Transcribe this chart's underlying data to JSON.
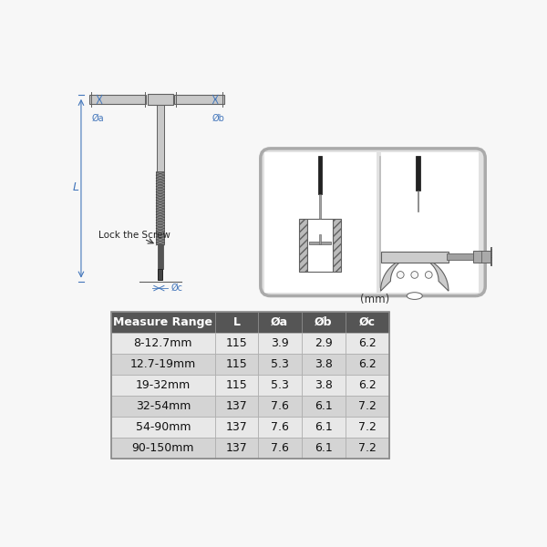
{
  "bg_color": "#f7f7f7",
  "table_header_bg": "#555555",
  "table_header_color": "#ffffff",
  "table_row_odd_bg": "#d4d4d4",
  "table_row_even_bg": "#e8e8e8",
  "table_headers": [
    "Measure Range",
    "L",
    "Øa",
    "Øb",
    "Øc"
  ],
  "table_rows": [
    [
      "8-12.7mm",
      "115",
      "3.9",
      "2.9",
      "6.2"
    ],
    [
      "12.7-19mm",
      "115",
      "5.3",
      "3.8",
      "6.2"
    ],
    [
      "19-32mm",
      "115",
      "5.3",
      "3.8",
      "6.2"
    ],
    [
      "32-54mm",
      "137",
      "7.6",
      "6.1",
      "7.2"
    ],
    [
      "54-90mm",
      "137",
      "7.6",
      "6.1",
      "7.2"
    ],
    [
      "90-150mm",
      "137",
      "7.6",
      "6.1",
      "7.2"
    ]
  ],
  "unit_label": "(mm)",
  "gray_light": "#c8c8c8",
  "gray_mid": "#a0a0a0",
  "gray_dark": "#606060",
  "black": "#222222",
  "dim_blue": "#4477bb",
  "knurl_bg": "#888888",
  "knurl_line": "#444444",
  "box_bg": "#e2e2e2",
  "box_border": "#aaaaaa",
  "white": "#ffffff"
}
